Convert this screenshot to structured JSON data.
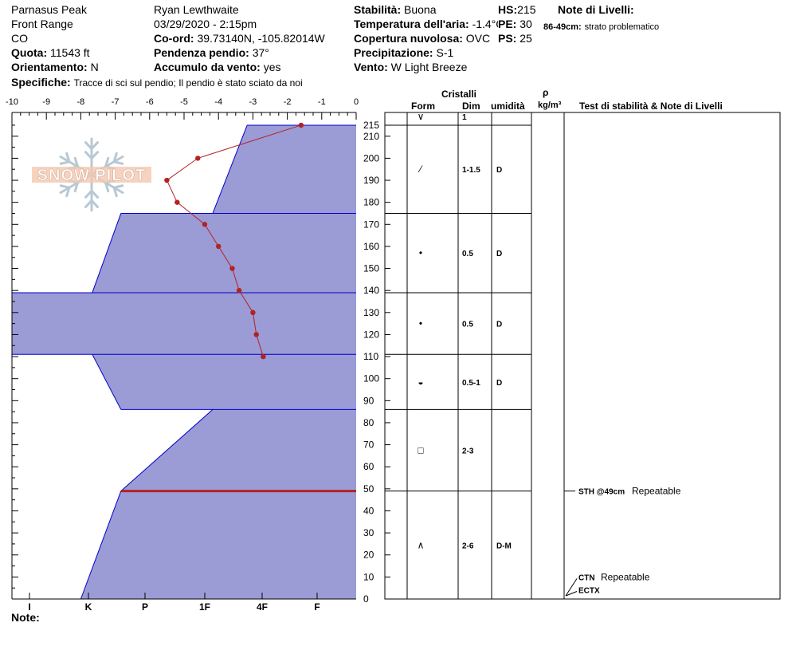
{
  "header": {
    "location": "Parnasus Peak",
    "range": "Front Range",
    "state": "CO",
    "elevation_label": "Quota:",
    "elevation_value": "11543 ft",
    "aspect_label": "Orientamento:",
    "aspect_value": "N",
    "specifics_label": "Specifiche:",
    "specifics_value": "Tracce di sci sul pendio;  Il pendio è stato sciato da noi",
    "observer": "Ryan Lewthwaite",
    "datetime": "03/29/2020 - 2:15pm",
    "coord_label": "Co-ord:",
    "coord_value": "39.73140N, -105.82014W",
    "slope_label": "Pendenza pendio:",
    "slope_value": "37°",
    "wind_loading_label": "Accumulo da vento:",
    "wind_loading_value": "yes",
    "stability_label": "Stabilità:",
    "stability_value": "Buona",
    "air_temp_label": "Temperatura dell'aria:",
    "air_temp_value": "-1.4°C",
    "sky_label": "Copertura nuvolosa:",
    "sky_value": "OVC",
    "precip_label": "Precipitazione:",
    "precip_value": "S-1",
    "wind_label": "Vento:",
    "wind_value": "W Light Breeze",
    "hs_label": "HS:",
    "hs_value": "215",
    "pe_label": "PE:",
    "pe_value": "30",
    "ps_label": "PS:",
    "ps_value": "25",
    "layer_notes_title": "Note di Livelli:",
    "layer_note_range": "86-49cm:",
    "layer_note_text": "strato problematico",
    "logo_text": "SNOW PILOT"
  },
  "columns": {
    "crystals": "Cristalli",
    "form": "Form",
    "size": "Dim",
    "moisture": "umidità",
    "rho": "ρ",
    "density_unit": "kg/m³",
    "tests_title": "Test di stabilità & Note di Livelli"
  },
  "footer": {
    "notes_label": "Note:"
  },
  "colors": {
    "hardness_fill": "#9b9bd6",
    "hardness_edge": "#0000cc",
    "temp_line": "#b22222",
    "weak_layer": "#b22222"
  },
  "chart_data": {
    "type": "line",
    "temperature_axis": {
      "min": -10,
      "max": 0,
      "ticks": [
        "-10",
        "-9",
        "-8",
        "-7",
        "-6",
        "-5",
        "-4",
        "-3",
        "-2",
        "-1",
        "0"
      ]
    },
    "hardness_axis": {
      "labels": [
        "I",
        "K",
        "P",
        "1F",
        "4F",
        "F"
      ]
    },
    "depth_axis": {
      "min": 0,
      "max": 220,
      "ticks": [
        "0",
        "10",
        "20",
        "30",
        "40",
        "50",
        "60",
        "70",
        "80",
        "90",
        "100",
        "110",
        "120",
        "130",
        "140",
        "150",
        "160",
        "170",
        "180",
        "190",
        "200",
        "210",
        "215"
      ]
    },
    "temperature_profile": [
      {
        "depth": 215,
        "temp": -1.6
      },
      {
        "depth": 200,
        "temp": -4.6
      },
      {
        "depth": 190,
        "temp": -5.5
      },
      {
        "depth": 180,
        "temp": -5.2
      },
      {
        "depth": 170,
        "temp": -4.4
      },
      {
        "depth": 160,
        "temp": -4.0
      },
      {
        "depth": 150,
        "temp": -3.6
      },
      {
        "depth": 140,
        "temp": -3.4
      },
      {
        "depth": 130,
        "temp": -3.0
      },
      {
        "depth": 120,
        "temp": -2.9
      },
      {
        "depth": 110,
        "temp": -2.7
      }
    ],
    "hardness_profile": [
      {
        "top": 215,
        "bottom": 175,
        "hardness_top": 1.9,
        "hardness_bottom": 2.5
      },
      {
        "top": 175,
        "bottom": 139,
        "hardness_top": 4.1,
        "hardness_bottom": 4.6
      },
      {
        "top": 139,
        "bottom": 111,
        "hardness_top": 6.0,
        "hardness_bottom": 6.0
      },
      {
        "top": 111,
        "bottom": 86,
        "hardness_top": 4.6,
        "hardness_bottom": 4.1
      },
      {
        "top": 86,
        "bottom": 49,
        "hardness_top": 2.5,
        "hardness_bottom": 4.1
      },
      {
        "top": 49,
        "bottom": 0,
        "hardness_top": 4.1,
        "hardness_bottom": 4.8
      }
    ],
    "layers": [
      {
        "top": 215,
        "bottom": 215,
        "form_icon": "surface-hoar-icon",
        "form_glyph": "∨",
        "size": "1",
        "moisture": ""
      },
      {
        "top": 215,
        "bottom": 175,
        "form_icon": "decomposing-icon",
        "form_glyph": "⁄",
        "size": "1-1.5",
        "moisture": "D"
      },
      {
        "top": 175,
        "bottom": 139,
        "form_icon": "rounded-grain-icon",
        "form_glyph": "•",
        "size": "0.5",
        "moisture": "D"
      },
      {
        "top": 139,
        "bottom": 111,
        "form_icon": "rounded-grain-icon",
        "form_glyph": "•",
        "size": "0.5",
        "moisture": "D"
      },
      {
        "top": 111,
        "bottom": 86,
        "form_icon": "mixed-form-icon",
        "form_glyph": "◒",
        "size": "0.5-1",
        "moisture": "D"
      },
      {
        "top": 86,
        "bottom": 49,
        "form_icon": "faceted-icon",
        "form_glyph": "□",
        "size": "2-3",
        "moisture": ""
      },
      {
        "top": 49,
        "bottom": 0,
        "form_icon": "depth-hoar-icon",
        "form_glyph": "∧",
        "size": "2-6",
        "moisture": "D-M"
      }
    ],
    "weak_layer_depth": 49,
    "tests": [
      {
        "depth": 49,
        "code": "STH @49cm",
        "result": "Repeatable"
      },
      {
        "depth": 10,
        "code": "CTN",
        "result": "Repeatable"
      },
      {
        "depth": 2,
        "code": "ECTX",
        "result": ""
      }
    ]
  }
}
